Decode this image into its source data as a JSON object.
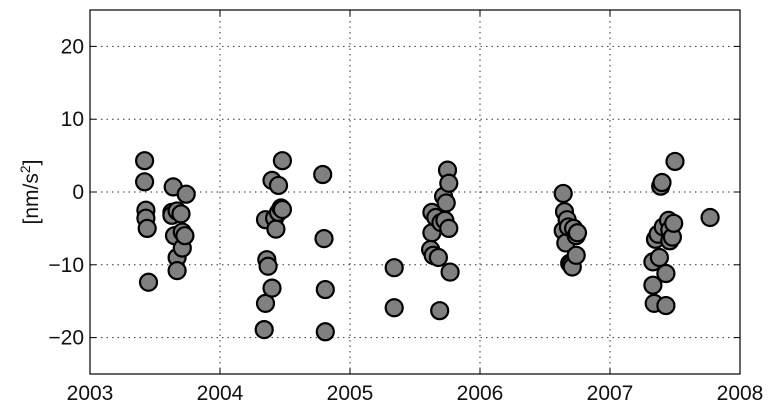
{
  "chart_data": {
    "type": "scatter",
    "title": "",
    "xlabel": "",
    "ylabel": "[nm/s",
    "ylabel_sup": "2",
    "ylabel_close": "]",
    "xlim": [
      2003,
      2008
    ],
    "ylim": [
      -25,
      25
    ],
    "xticks": [
      2003,
      2004,
      2005,
      2006,
      2007,
      2008
    ],
    "yticks": [
      -20,
      -10,
      0,
      10,
      20
    ],
    "grid": true,
    "marker_color": "#808080",
    "series": [
      {
        "points": [
          [
            2003.42,
            4.3
          ],
          [
            2003.42,
            1.4
          ],
          [
            2003.43,
            -2.5
          ],
          [
            2003.43,
            -3.6
          ],
          [
            2003.44,
            -5.0
          ],
          [
            2003.45,
            -12.4
          ],
          [
            2003.64,
            0.7
          ],
          [
            2003.63,
            -2.8
          ],
          [
            2003.63,
            -3.2
          ],
          [
            2003.65,
            -6.0
          ],
          [
            2003.67,
            -2.6
          ],
          [
            2003.67,
            -9.0
          ],
          [
            2003.67,
            -10.8
          ],
          [
            2003.7,
            -3.0
          ],
          [
            2003.71,
            -5.5
          ],
          [
            2003.71,
            -7.7
          ],
          [
            2003.74,
            -0.3
          ],
          [
            2003.73,
            -6.0
          ],
          [
            2004.35,
            -3.8
          ],
          [
            2004.36,
            -9.3
          ],
          [
            2004.37,
            -10.2
          ],
          [
            2004.35,
            -15.3
          ],
          [
            2004.34,
            -18.9
          ],
          [
            2004.4,
            1.6
          ],
          [
            2004.4,
            -13.2
          ],
          [
            2004.42,
            -3.6
          ],
          [
            2004.43,
            -5.1
          ],
          [
            2004.45,
            0.9
          ],
          [
            2004.45,
            -2.8
          ],
          [
            2004.47,
            -2.2
          ],
          [
            2004.48,
            4.3
          ],
          [
            2004.48,
            -2.4
          ],
          [
            2004.79,
            2.4
          ],
          [
            2004.8,
            -6.4
          ],
          [
            2004.81,
            -13.4
          ],
          [
            2004.81,
            -19.2
          ],
          [
            2005.34,
            -10.4
          ],
          [
            2005.34,
            -15.9
          ],
          [
            2005.63,
            -2.8
          ],
          [
            2005.63,
            -5.6
          ],
          [
            2005.62,
            -7.9
          ],
          [
            2005.64,
            -8.7
          ],
          [
            2005.66,
            -3.5
          ],
          [
            2005.68,
            -9.0
          ],
          [
            2005.69,
            -16.3
          ],
          [
            2005.7,
            -4.2
          ],
          [
            2005.72,
            -0.6
          ],
          [
            2005.73,
            -3.9
          ],
          [
            2005.74,
            -1.5
          ],
          [
            2005.75,
            3.0
          ],
          [
            2005.76,
            1.2
          ],
          [
            2005.76,
            -5.0
          ],
          [
            2005.77,
            -11.0
          ],
          [
            2006.64,
            -0.2
          ],
          [
            2006.64,
            -5.3
          ],
          [
            2006.65,
            -2.7
          ],
          [
            2006.66,
            -7.0
          ],
          [
            2006.67,
            -3.8
          ],
          [
            2006.68,
            -4.8
          ],
          [
            2006.69,
            -9.8
          ],
          [
            2006.7,
            -10.0
          ],
          [
            2006.71,
            -10.3
          ],
          [
            2006.72,
            -5.0
          ],
          [
            2006.74,
            -6.0
          ],
          [
            2006.74,
            -8.7
          ],
          [
            2006.75,
            -5.6
          ],
          [
            2007.33,
            -12.8
          ],
          [
            2007.34,
            -15.3
          ],
          [
            2007.33,
            -9.6
          ],
          [
            2007.35,
            -6.5
          ],
          [
            2007.37,
            -5.8
          ],
          [
            2007.38,
            -9.0
          ],
          [
            2007.39,
            0.8
          ],
          [
            2007.4,
            1.3
          ],
          [
            2007.41,
            -4.8
          ],
          [
            2007.43,
            -11.2
          ],
          [
            2007.43,
            -15.6
          ],
          [
            2007.45,
            -3.9
          ],
          [
            2007.46,
            -6.7
          ],
          [
            2007.46,
            -5.2
          ],
          [
            2007.48,
            -6.2
          ],
          [
            2007.49,
            -4.3
          ],
          [
            2007.5,
            4.2
          ],
          [
            2007.77,
            -3.5
          ]
        ]
      }
    ]
  }
}
